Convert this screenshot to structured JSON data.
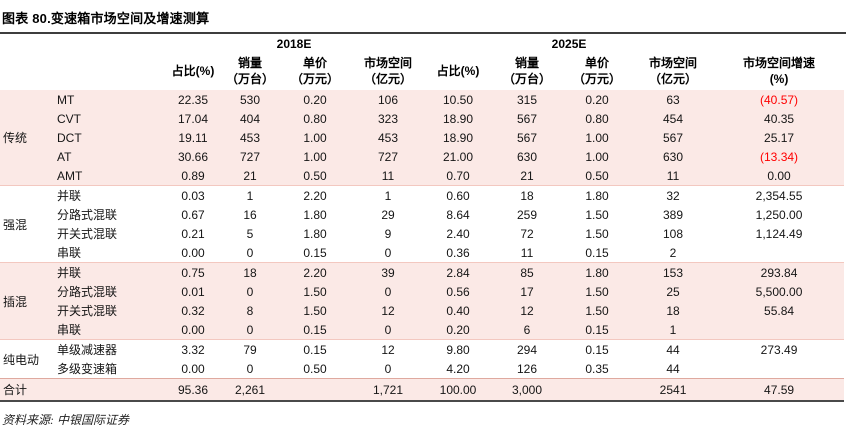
{
  "title": "图表 80.变速箱市场空间及增速测算",
  "source": "资料来源: 中银国际证券",
  "colors": {
    "row_shade_pink": "#fbe9e6",
    "negative_red": "#ff0000",
    "dark_rule": "#3d3d3d",
    "group_divider_pink": "#f3c8c0"
  },
  "header": {
    "year_groups": [
      "2018E",
      "2025E"
    ],
    "metric_columns": [
      {
        "line1": "占比(%)",
        "line2": ""
      },
      {
        "line1": "销量",
        "line2": "（万台）"
      },
      {
        "line1": "单价",
        "line2": "（万元）"
      },
      {
        "line1": "市场空间",
        "line2": "（亿元）"
      }
    ],
    "growth_column": {
      "line1": "市场空间增速",
      "line2": "(%)"
    }
  },
  "groups": [
    {
      "name": "传统",
      "shaded": true,
      "rows": [
        {
          "label": "MT",
          "values": [
            "22.35",
            "530",
            "0.20",
            "106",
            "10.50",
            "315",
            "0.20",
            "63",
            "(40.57)"
          ]
        },
        {
          "label": "CVT",
          "values": [
            "17.04",
            "404",
            "0.80",
            "323",
            "18.90",
            "567",
            "0.80",
            "454",
            "40.35"
          ]
        },
        {
          "label": "DCT",
          "values": [
            "19.11",
            "453",
            "1.00",
            "453",
            "18.90",
            "567",
            "1.00",
            "567",
            "25.17"
          ]
        },
        {
          "label": "AT",
          "values": [
            "30.66",
            "727",
            "1.00",
            "727",
            "21.00",
            "630",
            "1.00",
            "630",
            "(13.34)"
          ]
        },
        {
          "label": "AMT",
          "values": [
            "0.89",
            "21",
            "0.50",
            "11",
            "0.70",
            "21",
            "0.50",
            "11",
            "0.00"
          ]
        }
      ]
    },
    {
      "name": "强混",
      "shaded": false,
      "rows": [
        {
          "label": "并联",
          "values": [
            "0.03",
            "1",
            "2.20",
            "1",
            "0.60",
            "18",
            "1.80",
            "32",
            "2,354.55"
          ]
        },
        {
          "label": "分路式混联",
          "values": [
            "0.67",
            "16",
            "1.80",
            "29",
            "8.64",
            "259",
            "1.50",
            "389",
            "1,250.00"
          ]
        },
        {
          "label": "开关式混联",
          "values": [
            "0.21",
            "5",
            "1.80",
            "9",
            "2.40",
            "72",
            "1.50",
            "108",
            "1,124.49"
          ]
        },
        {
          "label": "串联",
          "values": [
            "0.00",
            "0",
            "0.15",
            "0",
            "0.36",
            "11",
            "0.15",
            "2",
            ""
          ]
        }
      ]
    },
    {
      "name": "插混",
      "shaded": true,
      "rows": [
        {
          "label": "并联",
          "values": [
            "0.75",
            "18",
            "2.20",
            "39",
            "2.84",
            "85",
            "1.80",
            "153",
            "293.84"
          ]
        },
        {
          "label": "分路式混联",
          "values": [
            "0.01",
            "0",
            "1.50",
            "0",
            "0.56",
            "17",
            "1.50",
            "25",
            "5,500.00"
          ]
        },
        {
          "label": "开关式混联",
          "values": [
            "0.32",
            "8",
            "1.50",
            "12",
            "0.40",
            "12",
            "1.50",
            "18",
            "55.84"
          ]
        },
        {
          "label": "串联",
          "values": [
            "0.00",
            "0",
            "0.15",
            "0",
            "0.20",
            "6",
            "0.15",
            "1",
            ""
          ]
        }
      ]
    },
    {
      "name": "纯电动",
      "shaded": false,
      "rows": [
        {
          "label": "单级减速器",
          "values": [
            "3.32",
            "79",
            "0.15",
            "12",
            "9.80",
            "294",
            "0.15",
            "44",
            "273.49"
          ]
        },
        {
          "label": "多级变速箱",
          "values": [
            "0.00",
            "0",
            "0.50",
            "0",
            "4.20",
            "126",
            "0.35",
            "44",
            ""
          ]
        }
      ]
    }
  ],
  "total": {
    "label": "合计",
    "values": [
      "95.36",
      "2,261",
      "",
      "1,721",
      "100.00",
      "3,000",
      "",
      "2541",
      "47.59"
    ]
  }
}
